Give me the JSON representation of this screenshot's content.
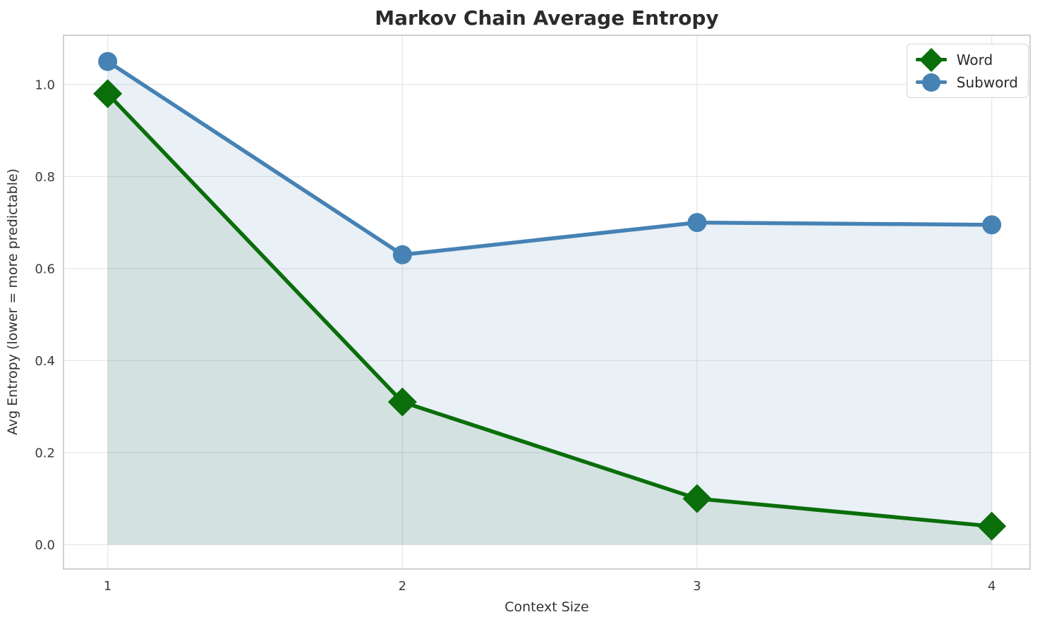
{
  "chart_data": {
    "type": "line",
    "title": "Markov Chain Average Entropy",
    "xlabel": "Context Size",
    "ylabel": "Avg Entropy (lower = more predictable)",
    "x": [
      1,
      2,
      3,
      4
    ],
    "series": [
      {
        "name": "Word",
        "values": [
          0.98,
          0.31,
          0.1,
          0.04
        ],
        "color": "#0a6e0a",
        "marker": "diamond",
        "fill_to_zero": true,
        "fill_opacity": 0.1
      },
      {
        "name": "Subword",
        "values": [
          1.05,
          0.63,
          0.7,
          0.695
        ],
        "color": "#4682b4",
        "marker": "circle",
        "fill_to_zero": true,
        "fill_opacity": 0.12
      }
    ],
    "xticks": {
      "values": [
        1,
        2,
        3,
        4
      ],
      "labels": [
        "1",
        "2",
        "3",
        "4"
      ]
    },
    "yticks": {
      "values": [
        0.0,
        0.2,
        0.4,
        0.6,
        0.8,
        1.0
      ],
      "labels": [
        "0.0",
        "0.2",
        "0.4",
        "0.6",
        "0.8",
        "1.0"
      ]
    },
    "xlim": [
      0.85,
      4.13
    ],
    "ylim": [
      -0.053,
      1.107
    ],
    "grid": true,
    "legend": {
      "position": "top-right",
      "entries": [
        "Word",
        "Subword"
      ]
    }
  },
  "style": {
    "background": "#ffffff",
    "grid_color": "#e7e7e7",
    "spine_color": "#cccccc",
    "title_color": "#2b2b2b",
    "tick_color": "#3b3b3b",
    "label_color": "#333333"
  }
}
